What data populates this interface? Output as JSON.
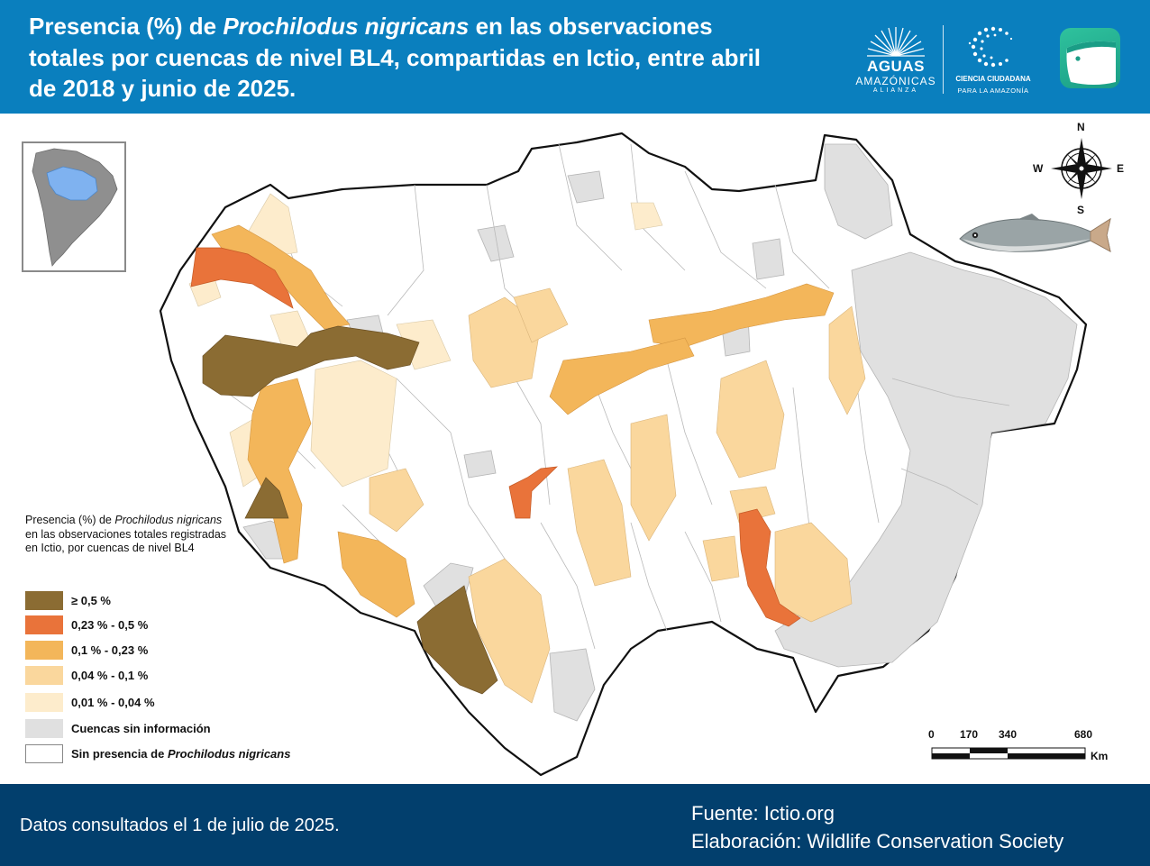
{
  "header": {
    "title_part1": "Presencia (%) de ",
    "title_species": "Prochilodus nigricans",
    "title_part2": " en las observaciones totales por cuencas de nivel BL4, compartidas en Ictio, entre abril de 2018 y junio de 2025.",
    "logos": {
      "aguas": [
        "AGUAS",
        "AMAZÓNICAS",
        "ALIANZA"
      ],
      "ciencia": [
        "CIENCIA CIUDADANA",
        "PARA LA AMAZONÍA"
      ],
      "ictio": "ictio-logo"
    }
  },
  "compass": {
    "n": "N",
    "s": "S",
    "e": "E",
    "w": "W"
  },
  "legend": {
    "title_part1": "Presencia (%) de ",
    "title_species": "Prochilodus nigricans",
    "title_part2": " en las observaciones totales registradas en Ictio, por cuencas de nivel BL4",
    "items": [
      {
        "label": "≥ 0,5 %",
        "color": "#8b6c33"
      },
      {
        "label": "0,23 % - 0,5 %",
        "color": "#e9733a"
      },
      {
        "label": "0,1 % - 0,23 %",
        "color": "#f3b65a"
      },
      {
        "label": "0,04 % - 0,1 %",
        "color": "#fad79d"
      },
      {
        "label": "0,01 % - 0,04 %",
        "color": "#fdeccc"
      },
      {
        "label": "Cuencas sin información",
        "color": "#e0e0e0"
      },
      {
        "label_prefix": "Sin presencia de ",
        "label_species": "Prochilodus nigricans",
        "color": "#ffffff"
      }
    ]
  },
  "scale_bar": {
    "ticks": [
      "0",
      "170",
      "340",
      "680"
    ],
    "unit": "Km"
  },
  "footer": {
    "date": "Datos consultados el 1 de julio de 2025.",
    "source": "Fuente: Ictio.org",
    "credit": "Elaboración: Wildlife Conservation Society"
  }
}
